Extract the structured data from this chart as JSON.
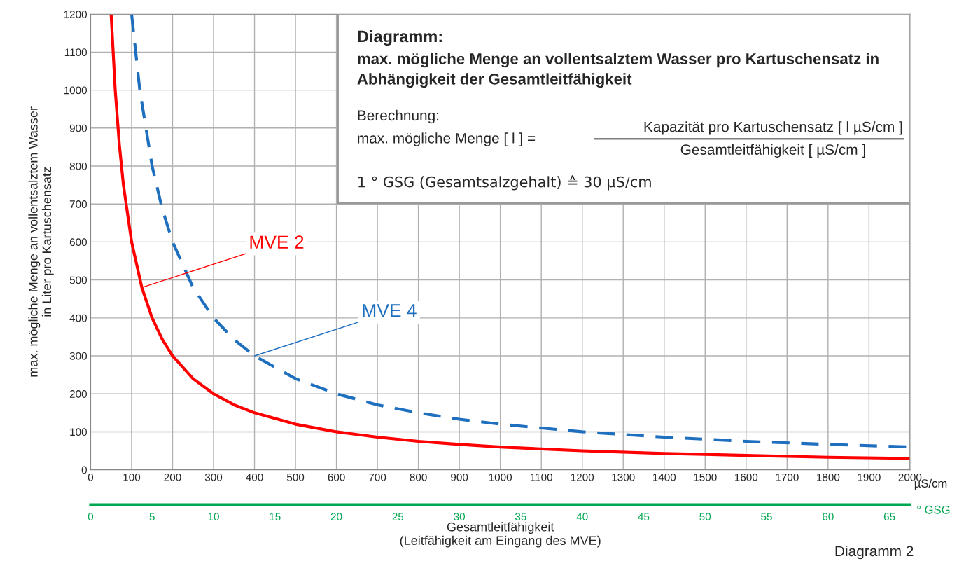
{
  "chart_data": {
    "type": "line",
    "title": "Diagramm:",
    "subtitle": "max. mögliche Menge an vollentsalztem Wasser pro Kartuschensatz in Abhängigkeit der Gesamtleitfähigkeit",
    "xlabel": "Gesamtleitfähigkeit\n(Leitfähigkeit am Eingang des MVE)",
    "ylabel": "max. mögliche Menge an vollentsalztem Wasser\nin Liter pro Kartuschensatz",
    "x2label": "° GSG",
    "series": [
      {
        "name": "MVE 2",
        "color": "#ff0000",
        "line_style": "solid",
        "x": [
          50,
          60,
          70,
          80,
          100,
          125,
          150,
          175,
          200,
          250,
          300,
          350,
          400,
          500,
          600,
          700,
          800,
          900,
          1000,
          1200,
          1400,
          1600,
          1800,
          2000
        ],
        "values": [
          1200,
          1000,
          857,
          750,
          600,
          480,
          400,
          343,
          300,
          240,
          200,
          171,
          150,
          120,
          100,
          86,
          75,
          67,
          60,
          50,
          43,
          38,
          33,
          30
        ]
      },
      {
        "name": "MVE 4",
        "color": "#1f6fbf",
        "line_style": "dashed",
        "x": [
          100,
          120,
          150,
          175,
          200,
          250,
          300,
          350,
          400,
          500,
          600,
          700,
          800,
          900,
          1000,
          1200,
          1400,
          1600,
          1800,
          2000
        ],
        "values": [
          1200,
          1000,
          800,
          686,
          600,
          480,
          400,
          343,
          300,
          240,
          200,
          171,
          150,
          133,
          120,
          100,
          86,
          75,
          67,
          60
        ]
      }
    ],
    "xlim": [
      0,
      2000
    ],
    "xticks": [
      0,
      100,
      200,
      300,
      400,
      500,
      600,
      700,
      800,
      900,
      1000,
      1100,
      1200,
      1300,
      1400,
      1500,
      1600,
      1700,
      1800,
      1900,
      2000
    ],
    "ylim": [
      0,
      1200
    ],
    "yticks": [
      0,
      100,
      200,
      300,
      400,
      500,
      600,
      700,
      800,
      900,
      1000,
      1100,
      1200
    ],
    "x2lim": [
      0,
      66.67
    ],
    "x2ticks": [
      0,
      5,
      10,
      15,
      20,
      25,
      30,
      35,
      40,
      45,
      50,
      55,
      60,
      65
    ],
    "grid": true,
    "legend": false,
    "annotations": [
      "µS/cm",
      "Berechnung:",
      "max. mögliche Menge [ l ] =",
      "Kapazität pro Kartuschensatz [ l µS/cm ]",
      "Gesamtleitfähigkeit [ µS/cm ]",
      "1 ° GSG (Gesamtsalzgehalt) ≙ 30 µS/cm",
      "Diagramm 2"
    ]
  }
}
